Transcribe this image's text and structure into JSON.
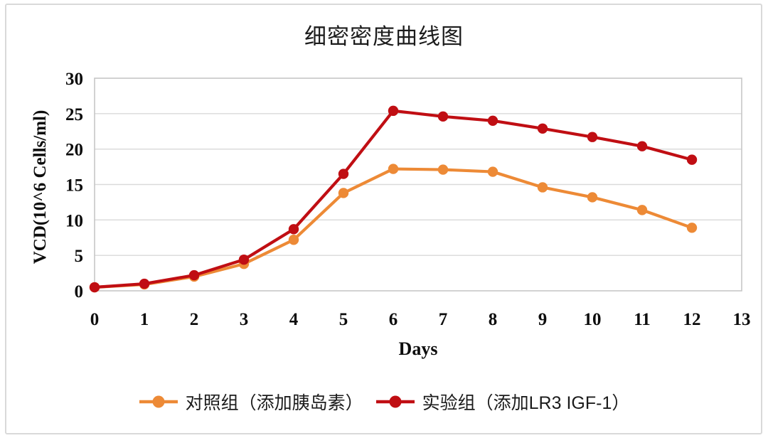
{
  "title": "细密密度曲线图",
  "chart_data": {
    "type": "line",
    "title": "细密密度曲线图",
    "xlabel": "Days",
    "ylabel": "VCD(10^6 Cells/ml)",
    "x": [
      0,
      1,
      2,
      3,
      4,
      5,
      6,
      7,
      8,
      9,
      10,
      11,
      12
    ],
    "series": [
      {
        "name": "对照组（添加胰岛素）",
        "color": "#ED8A36",
        "values": [
          0.5,
          0.9,
          2.0,
          3.8,
          7.2,
          13.8,
          17.2,
          17.1,
          16.8,
          14.6,
          13.2,
          11.4,
          8.9
        ]
      },
      {
        "name": "实验组（添加LR3 IGF-1）",
        "color": "#C00E13",
        "values": [
          0.5,
          1.0,
          2.2,
          4.4,
          8.7,
          16.5,
          25.4,
          24.6,
          24.0,
          22.9,
          21.7,
          20.4,
          18.5
        ]
      }
    ],
    "xlim": [
      0,
      13
    ],
    "ylim": [
      0,
      30
    ],
    "xticks": [
      0,
      1,
      2,
      3,
      4,
      5,
      6,
      7,
      8,
      9,
      10,
      11,
      12,
      13
    ],
    "yticks": [
      0,
      5,
      10,
      15,
      20,
      25,
      30
    ],
    "grid": "horizontal",
    "legend_position": "bottom",
    "colors": {
      "gridline": "#D9D9D9",
      "plot_border": "#C6C6C6",
      "tick_text": "#0D0D0D",
      "frame_border": "#D9D9D9"
    }
  }
}
